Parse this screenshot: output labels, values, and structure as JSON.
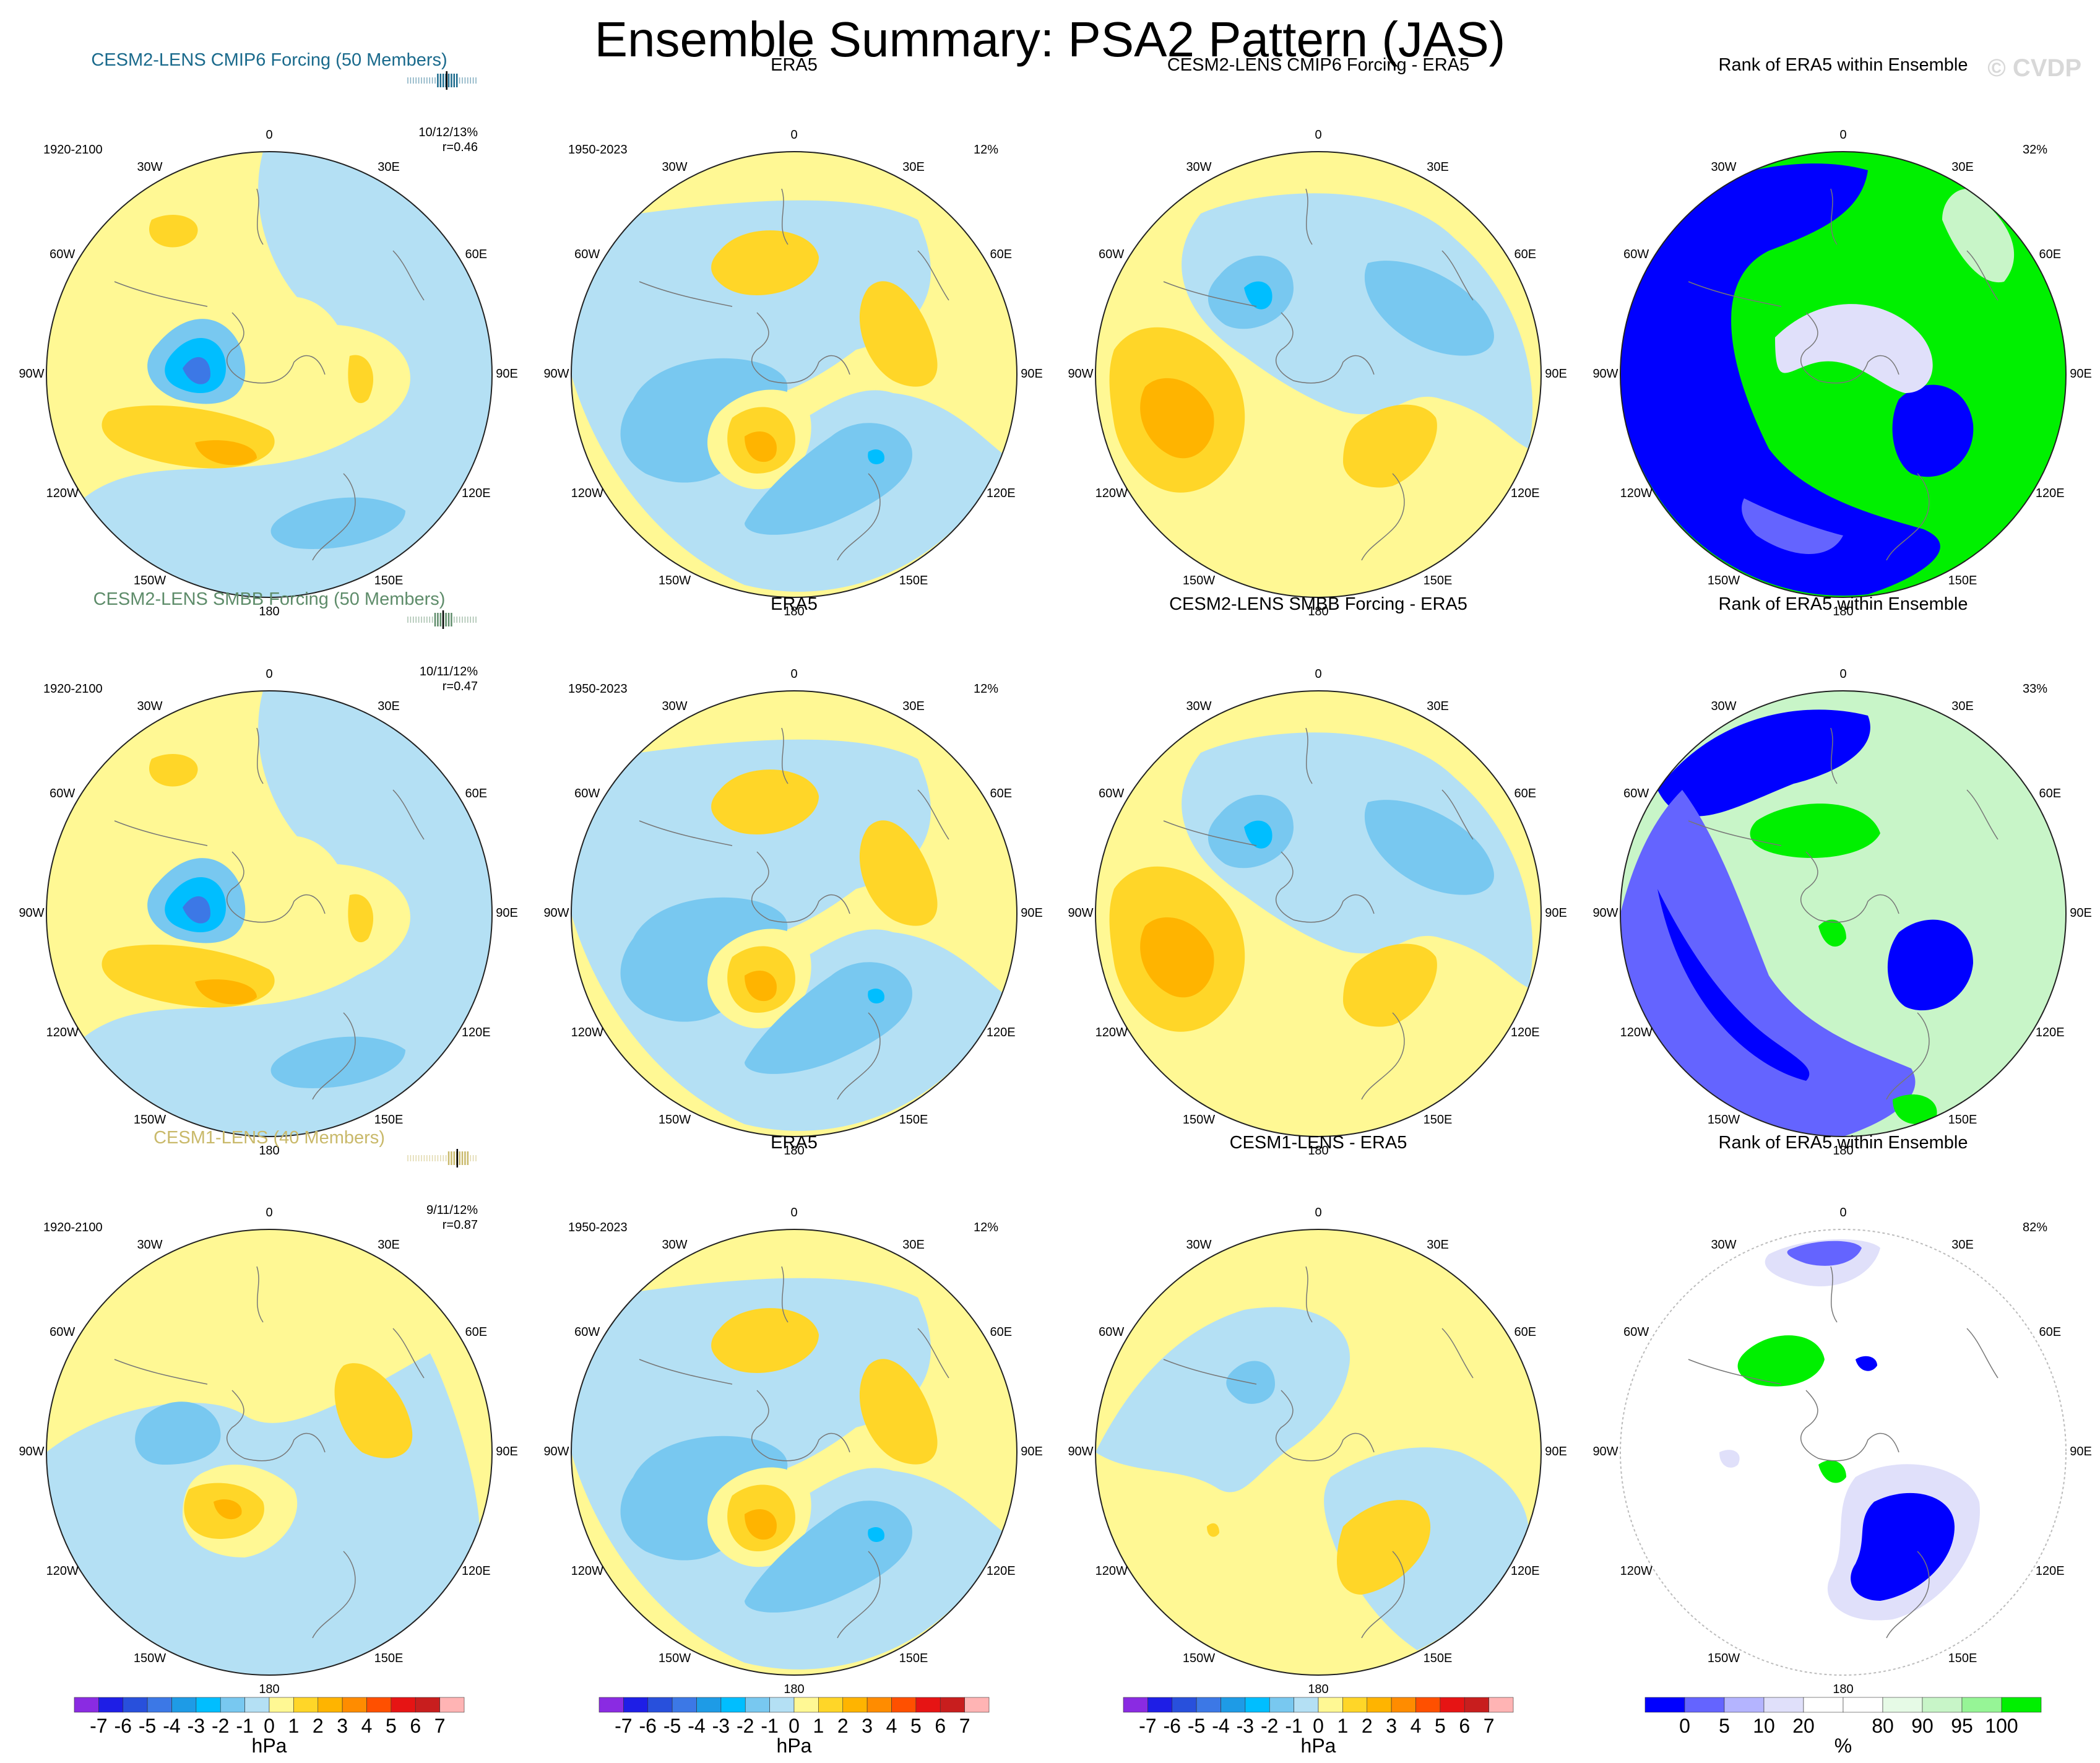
{
  "title": "Ensemble Summary: PSA2 Pattern (JAS)",
  "watermark": "© CVDP",
  "lon_labels": [
    "0",
    "30E",
    "60E",
    "90E",
    "120E",
    "150E",
    "180",
    "150W",
    "120W",
    "90W",
    "60W",
    "30W"
  ],
  "rows": [
    {
      "model": {
        "title": "CESM2-LENS CMIP6 Forcing (50 Members)",
        "color_class": "t-cmip6",
        "period": "1920-2100",
        "stat1": "10/12/13%",
        "stat2": "r=0.46",
        "bar_color": "#1a6a8c",
        "bar_hi": 0.55
      },
      "obs": {
        "title": "ERA5",
        "period": "1950-2023",
        "pct": "12%"
      },
      "diff": {
        "title": "CESM2-LENS CMIP6 Forcing - ERA5"
      },
      "rank": {
        "title": "Rank of ERA5 within Ensemble",
        "pct": "32%"
      }
    },
    {
      "model": {
        "title": "CESM2-LENS SMBB Forcing (50 Members)",
        "color_class": "t-smbb",
        "period": "1920-2100",
        "stat1": "10/11/12%",
        "stat2": "r=0.47",
        "bar_color": "#5e8c6a",
        "bar_hi": 0.5
      },
      "obs": {
        "title": "ERA5",
        "period": "1950-2023",
        "pct": "12%"
      },
      "diff": {
        "title": "CESM2-LENS SMBB Forcing - ERA5"
      },
      "rank": {
        "title": "Rank of ERA5 within Ensemble",
        "pct": "33%"
      }
    },
    {
      "model": {
        "title": "CESM1-LENS (40 Members)",
        "color_class": "t-cesm1",
        "period": "1920-2100",
        "stat1": "9/11/12%",
        "stat2": "r=0.87",
        "bar_color": "#c9b96a",
        "bar_hi": 0.7
      },
      "obs": {
        "title": "ERA5",
        "period": "1950-2023",
        "pct": "12%"
      },
      "diff": {
        "title": "CESM1-LENS - ERA5"
      },
      "rank": {
        "title": "Rank of ERA5 within Ensemble",
        "pct": "82%"
      }
    }
  ],
  "colorbar_hpa": {
    "colors": [
      "#8a2be2",
      "#1e1ee6",
      "#2850dc",
      "#3c78e6",
      "#1e9be6",
      "#00beff",
      "#78c8f0",
      "#b4e0f4",
      "#fff894",
      "#ffd628",
      "#ffb400",
      "#ff8c00",
      "#ff5000",
      "#e61414",
      "#c81e1e",
      "#ffb4b4"
    ],
    "labels": [
      "-7",
      "-6",
      "-5",
      "-4",
      "-3",
      "-2",
      "-1",
      "0",
      "1",
      "2",
      "3",
      "4",
      "5",
      "6",
      "7"
    ],
    "unit": "hPa"
  },
  "colorbar_rank": {
    "colors": [
      "#0000ff",
      "#6464ff",
      "#b4b4ff",
      "#e0e0fa",
      "#ffffff",
      "#ffffff",
      "#e6fae6",
      "#c8f5c8",
      "#96f596",
      "#00f000"
    ],
    "labels": [
      "0",
      "5",
      "10",
      "20",
      "80",
      "90",
      "95",
      "100"
    ],
    "unit": "%"
  },
  "palette": {
    "yellow": "#fff894",
    "lightblue": "#b4e0f4",
    "blue": "#78c8f0",
    "orange": "#ffd628",
    "darkorange": "#ffb400",
    "cyan": "#00beff",
    "darkblue": "#3c78e6",
    "rank_blue": "#0000ff",
    "rank_midblue": "#6464ff",
    "rank_lav": "#e0e0fa",
    "rank_green": "#00f000",
    "rank_lightgreen": "#c8f5c8"
  }
}
